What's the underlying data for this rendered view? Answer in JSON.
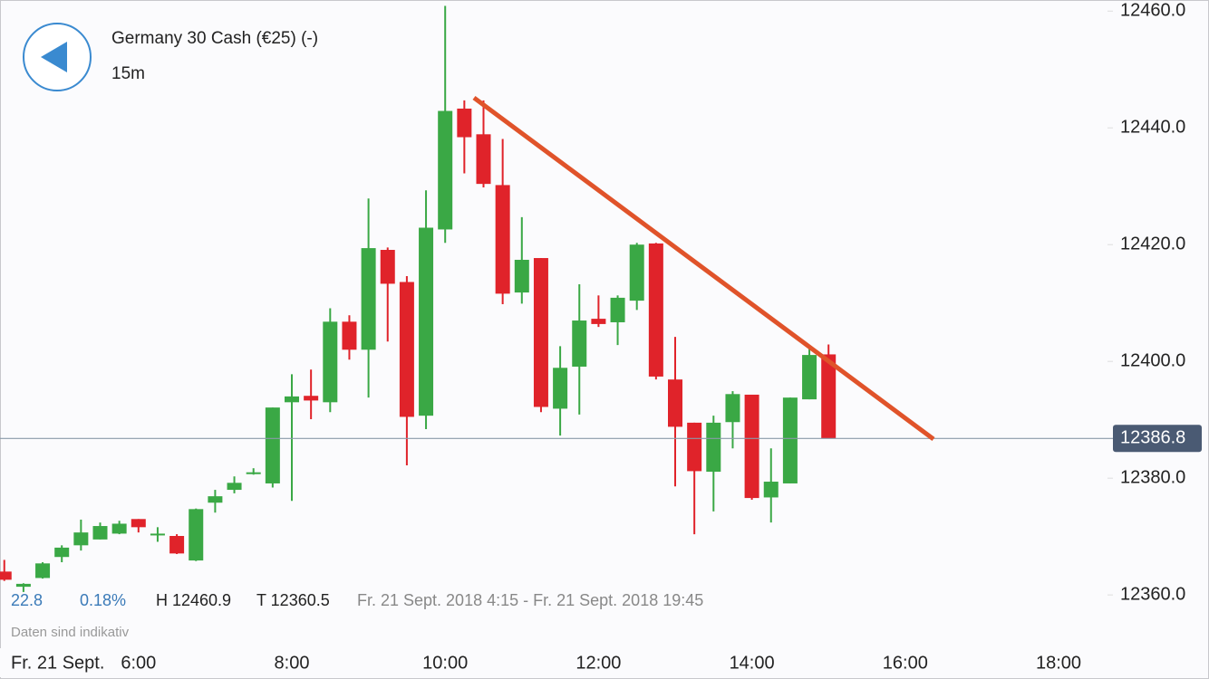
{
  "header": {
    "title": "Germany 30 Cash (€25) (-)",
    "interval": "15m"
  },
  "stats": {
    "change": "22.8",
    "change_percent": "0.18%",
    "high": "H 12460.9",
    "low": "T 12360.5",
    "range": "Fr. 21 Sept. 2018 4:15 - Fr. 21 Sept. 2018 19:45"
  },
  "notice": "Daten sind indikativ",
  "date_label": "Fr. 21 Sept.",
  "chart_data": {
    "type": "candlestick",
    "x": [
      "4:15",
      "4:30",
      "4:45",
      "5:00",
      "5:15",
      "5:30",
      "5:45",
      "6:00",
      "6:15",
      "6:30",
      "6:45",
      "7:00",
      "7:15",
      "7:30",
      "7:45",
      "8:00",
      "8:15",
      "8:30",
      "8:45",
      "9:00",
      "9:15",
      "9:30",
      "9:45",
      "10:00",
      "10:15",
      "10:30",
      "10:45",
      "11:00",
      "11:15",
      "11:30",
      "11:45",
      "12:00",
      "12:15",
      "12:30",
      "12:45",
      "13:00",
      "13:15",
      "13:30",
      "13:45",
      "14:00",
      "14:15",
      "14:30",
      "14:45",
      "15:00"
    ],
    "open": [
      12364.0,
      12361.4,
      12362.9,
      12366.5,
      12368.5,
      12369.5,
      12370.5,
      12373.0,
      12370.4,
      12370.1,
      12365.9,
      12375.8,
      12378.0,
      12380.8,
      12379.1,
      12393.0,
      12394.1,
      12393.0,
      12406.8,
      12402.0,
      12419.1,
      12413.6,
      12390.7,
      12422.6,
      12443.3,
      12438.9,
      12430.2,
      12411.8,
      12417.7,
      12391.9,
      12399.1,
      12407.3,
      12406.7,
      12410.4,
      12420.2,
      12396.9,
      12389.5,
      12381.1,
      12389.6,
      12394.3,
      12376.7,
      12379.1,
      12393.5,
      12401.2
    ],
    "high": [
      12366.0,
      12362.0,
      12365.6,
      12368.5,
      12372.9,
      12372.4,
      12372.7,
      12373.0,
      12371.6,
      12370.4,
      12374.8,
      12378.0,
      12380.3,
      12381.7,
      12392.1,
      12397.8,
      12398.6,
      12409.1,
      12407.9,
      12427.9,
      12419.5,
      12414.6,
      12429.3,
      12460.9,
      12444.7,
      12444.7,
      12438.1,
      12424.7,
      12417.7,
      12402.6,
      12413.2,
      12411.3,
      12411.3,
      12420.3,
      12420.3,
      12404.2,
      12389.5,
      12390.7,
      12394.9,
      12394.3,
      12385.1,
      12393.8,
      12402.2,
      12402.9
    ],
    "low": [
      12362.4,
      12360.5,
      12362.8,
      12365.6,
      12367.6,
      12369.5,
      12370.4,
      12370.7,
      12369.1,
      12367.0,
      12365.8,
      12374.1,
      12377.4,
      12380.6,
      12378.4,
      12376.1,
      12390.1,
      12391.3,
      12400.3,
      12393.8,
      12403.4,
      12382.2,
      12388.4,
      12420.3,
      12432.2,
      12429.8,
      12409.8,
      12409.9,
      12391.3,
      12387.3,
      12390.9,
      12405.9,
      12402.8,
      12408.8,
      12396.9,
      12378.6,
      12370.4,
      12374.3,
      12385.1,
      12376.3,
      12372.4,
      12379.1,
      12393.5,
      12386.8
    ],
    "close": [
      12362.6,
      12361.9,
      12365.4,
      12368.1,
      12370.7,
      12371.8,
      12372.2,
      12371.6,
      12370.5,
      12367.1,
      12374.7,
      12376.9,
      12379.2,
      12381.0,
      12392.1,
      12394.0,
      12393.3,
      12406.8,
      12402.0,
      12419.4,
      12413.3,
      12390.5,
      12422.9,
      12442.9,
      12438.4,
      12430.4,
      12411.6,
      12417.4,
      12392.2,
      12398.9,
      12407.0,
      12406.4,
      12410.9,
      12420.0,
      12397.4,
      12388.8,
      12381.2,
      12389.5,
      12394.4,
      12376.6,
      12379.4,
      12393.8,
      12401.1,
      12386.8
    ],
    "up_color": "#3aa845",
    "down_color": "#e0232a",
    "current_price": {
      "value": 12386.8,
      "label": "12386.8"
    },
    "ylim": [
      12345.6,
      12461.9
    ],
    "yticks": [
      {
        "value": 12360,
        "label": "12360.0"
      },
      {
        "value": 12380,
        "label": "12380.0"
      },
      {
        "value": 12400,
        "label": "12400.0"
      },
      {
        "value": 12420,
        "label": "12420.0"
      },
      {
        "value": 12440,
        "label": "12440.0"
      },
      {
        "value": 12460,
        "label": "12460.0"
      }
    ],
    "xticks": [
      "6:00",
      "8:00",
      "10:00",
      "12:00",
      "14:00",
      "16:00",
      "18:00"
    ]
  }
}
